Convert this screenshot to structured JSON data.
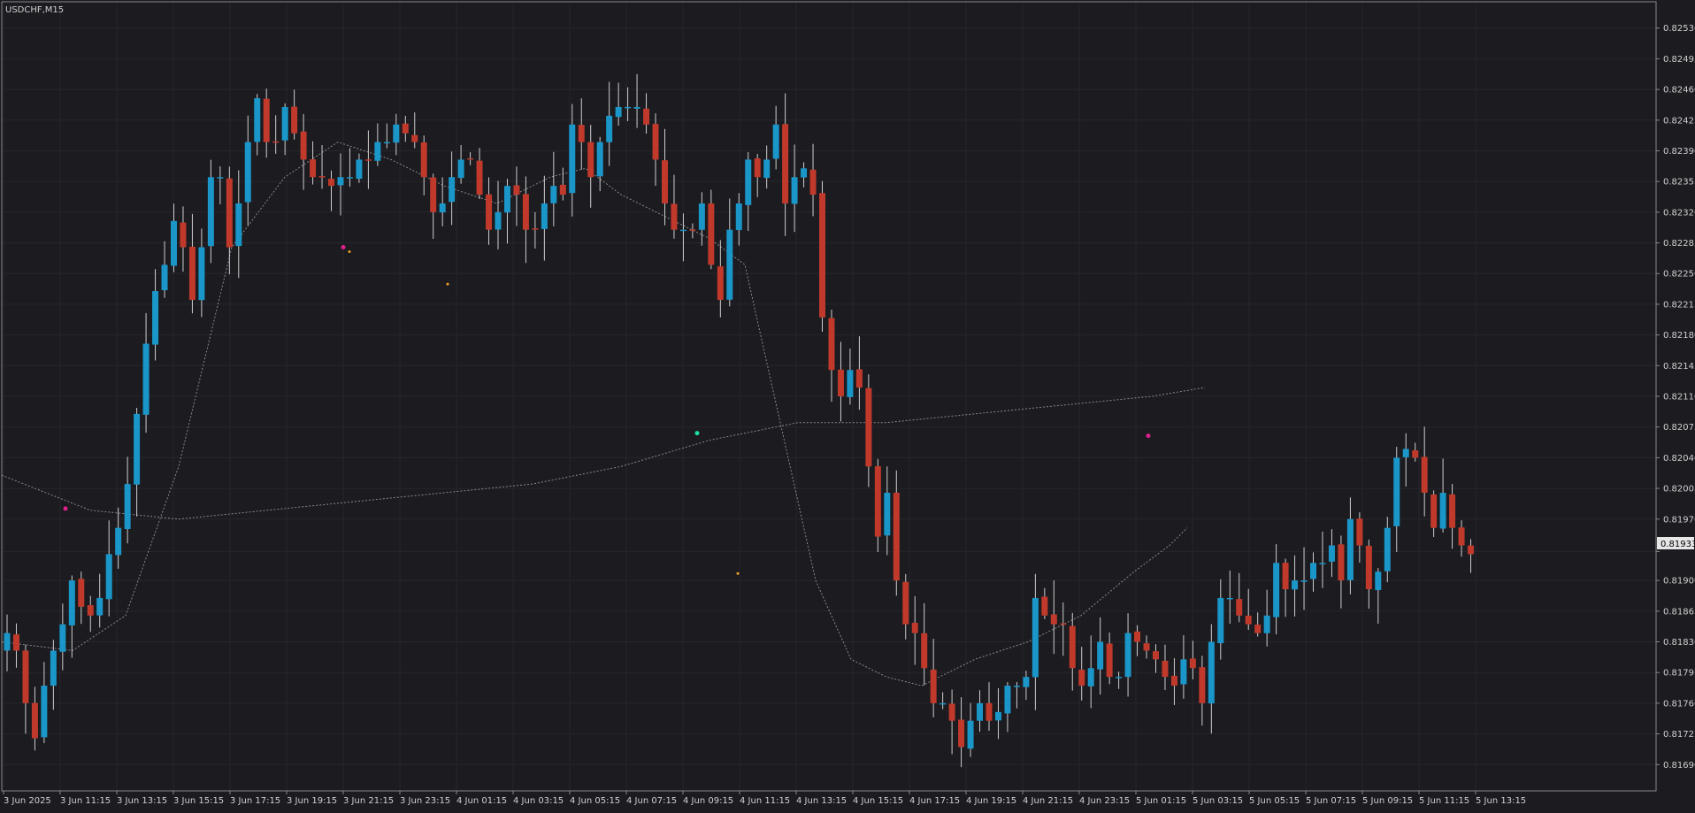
{
  "title": "USDCHF,M15",
  "current_price_label": "0.81933",
  "chart_data": {
    "type": "candlestick",
    "title": "USDCHF,M15",
    "timeframe": "M15",
    "ylim": [
      0.8166,
      0.8256
    ],
    "y_ticks": [
      "0.82530",
      "0.82495",
      "0.82460",
      "0.82425",
      "0.82390",
      "0.82355",
      "0.82320",
      "0.82285",
      "0.82250",
      "0.82215",
      "0.82180",
      "0.82145",
      "0.82110",
      "0.82075",
      "0.82040",
      "0.82005",
      "0.81970",
      "0.81933",
      "0.81900",
      "0.81865",
      "0.81830",
      "0.81795",
      "0.81760",
      "0.81725",
      "0.81690"
    ],
    "x_ticks": [
      "3 Jun 2025",
      "3 Jun 11:15",
      "3 Jun 13:15",
      "3 Jun 15:15",
      "3 Jun 17:15",
      "3 Jun 19:15",
      "3 Jun 21:15",
      "3 Jun 23:15",
      "4 Jun 01:15",
      "4 Jun 03:15",
      "4 Jun 05:15",
      "4 Jun 07:15",
      "4 Jun 09:15",
      "4 Jun 11:15",
      "4 Jun 13:15",
      "4 Jun 15:15",
      "4 Jun 17:15",
      "4 Jun 19:15",
      "4 Jun 21:15",
      "4 Jun 23:15",
      "5 Jun 01:15",
      "5 Jun 03:15",
      "5 Jun 05:15",
      "5 Jun 07:15",
      "5 Jun 09:15",
      "5 Jun 11:15",
      "5 Jun 13:15"
    ],
    "colors": {
      "bull": "#1a96c8",
      "bear": "#c0392b",
      "background": "#1b1b20",
      "grid": "#26262c",
      "ma": "#8a8a8a"
    },
    "candle_anchors": [
      0.8184,
      0.8182,
      0.8176,
      0.8172,
      0.8178,
      0.8182,
      0.8185,
      0.819,
      0.8187,
      0.8186,
      0.8188,
      0.8193,
      0.8196,
      0.8201,
      0.8209,
      0.8217,
      0.8223,
      0.8226,
      0.8231,
      0.8228,
      0.8222,
      0.8228,
      0.8236,
      0.8236,
      0.8228,
      0.8233,
      0.824,
      0.8245,
      0.824,
      0.824,
      0.8244,
      0.8241,
      0.8238,
      0.8236,
      0.8236,
      0.8235,
      0.8236,
      0.8236,
      0.8238,
      0.8238,
      0.824,
      0.824,
      0.8242,
      0.8241,
      0.824,
      0.8236,
      0.8232,
      0.8233,
      0.8236,
      0.8238,
      0.8238,
      0.8234,
      0.823,
      0.8232,
      0.8235,
      0.8234,
      0.823,
      0.823,
      0.8233,
      0.8235,
      0.8234,
      0.8242,
      0.824,
      0.8236,
      0.824,
      0.8243,
      0.8244,
      0.8244,
      0.8244,
      0.8242,
      0.8238,
      0.8233,
      0.823,
      0.823,
      0.823,
      0.8233,
      0.8226,
      0.8222,
      0.823,
      0.8233,
      0.8238,
      0.8236,
      0.8238,
      0.8242,
      0.8233,
      0.8236,
      0.8237,
      0.8234,
      0.822,
      0.8214,
      0.8211,
      0.8214,
      0.8212,
      0.8203,
      0.8195,
      0.82,
      0.819,
      0.8185,
      0.8184,
      0.818,
      0.8176,
      0.8176,
      0.8174,
      0.8171,
      0.8174,
      0.8176,
      0.8174,
      0.8175,
      0.8178,
      0.8178,
      0.8179,
      0.8188,
      0.8186,
      0.8185,
      0.8185,
      0.818,
      0.8178,
      0.818,
      0.8183,
      0.8179,
      0.8179,
      0.8184,
      0.8183,
      0.8182,
      0.8181,
      0.8179,
      0.8178,
      0.8181,
      0.818,
      0.8176,
      0.8183,
      0.8188,
      0.8188,
      0.8186,
      0.8185,
      0.8184,
      0.8186,
      0.8192,
      0.8189,
      0.819,
      0.819,
      0.8192,
      0.8192,
      0.8194,
      0.819,
      0.8197,
      0.8194,
      0.8189,
      0.8191,
      0.8196,
      0.8204,
      0.8205,
      0.8204,
      0.82,
      0.8196,
      0.82,
      0.8196,
      0.8194,
      0.8193
    ],
    "overlay_ma_fast": [
      [
        0,
        0.8183
      ],
      [
        80,
        0.8182
      ],
      [
        140,
        0.8186
      ],
      [
        200,
        0.8203
      ],
      [
        260,
        0.8228
      ],
      [
        320,
        0.8236
      ],
      [
        380,
        0.824
      ],
      [
        440,
        0.8238
      ],
      [
        500,
        0.8235
      ],
      [
        560,
        0.8233
      ],
      [
        620,
        0.8236
      ],
      [
        660,
        0.8237
      ],
      [
        700,
        0.8234
      ],
      [
        760,
        0.8231
      ],
      [
        800,
        0.8229
      ],
      [
        840,
        0.8226
      ],
      [
        880,
        0.8208
      ],
      [
        920,
        0.819
      ],
      [
        960,
        0.8181
      ],
      [
        1000,
        0.8179
      ],
      [
        1040,
        0.8178
      ],
      [
        1100,
        0.8181
      ],
      [
        1160,
        0.8183
      ],
      [
        1220,
        0.8186
      ],
      [
        1280,
        0.8191
      ],
      [
        1320,
        0.8194
      ],
      [
        1340,
        0.8196
      ]
    ],
    "overlay_ma_slow": [
      [
        0,
        0.8202
      ],
      [
        100,
        0.8198
      ],
      [
        200,
        0.8197
      ],
      [
        300,
        0.8198
      ],
      [
        400,
        0.8199
      ],
      [
        500,
        0.82
      ],
      [
        600,
        0.8201
      ],
      [
        700,
        0.8203
      ],
      [
        800,
        0.8206
      ],
      [
        900,
        0.8208
      ],
      [
        1000,
        0.8208
      ],
      [
        1100,
        0.8209
      ],
      [
        1200,
        0.821
      ],
      [
        1300,
        0.8211
      ],
      [
        1360,
        0.8212
      ]
    ],
    "signal_dots": [
      {
        "x": 74,
        "price": 0.81982,
        "color": "#e0208a"
      },
      {
        "x": 388,
        "price": 0.8228,
        "color": "#e0208a"
      },
      {
        "x": 395,
        "price": 0.82275,
        "color": "#f0a020"
      },
      {
        "x": 506,
        "price": 0.82238,
        "color": "#f0a020"
      },
      {
        "x": 788,
        "price": 0.82068,
        "color": "#20e0a0"
      },
      {
        "x": 834,
        "price": 0.81908,
        "color": "#f0a020"
      },
      {
        "x": 1298,
        "price": 0.82065,
        "color": "#e0208a"
      }
    ]
  }
}
